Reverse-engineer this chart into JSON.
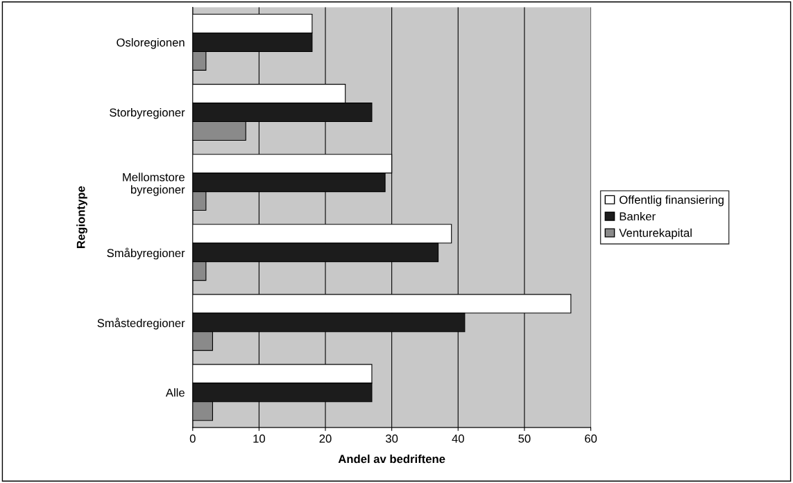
{
  "chart_data": {
    "type": "bar",
    "orientation": "horizontal",
    "xlabel": "Andel av bedriftene",
    "ylabel": "Regiontype",
    "categories": [
      "Osloregionen",
      "Storbyregioner",
      "Mellomstore\nbyregioner",
      "Småbyregioner",
      "Småstedregioner",
      "Alle"
    ],
    "series": [
      {
        "name": "Offentlig finansiering",
        "color": "#ffffff",
        "values": [
          18,
          23,
          30,
          39,
          57,
          27
        ]
      },
      {
        "name": "Banker",
        "color": "#1c1c1c",
        "values": [
          18,
          27,
          29,
          37,
          41,
          27
        ]
      },
      {
        "name": "Venturekapital",
        "color": "#8a8a8a",
        "values": [
          2,
          8,
          2,
          2,
          3,
          3
        ]
      }
    ],
    "xlim": [
      0,
      60
    ],
    "xticks": [
      0,
      10,
      20,
      30,
      40,
      50,
      60
    ],
    "grid": "x",
    "legend": "right"
  }
}
